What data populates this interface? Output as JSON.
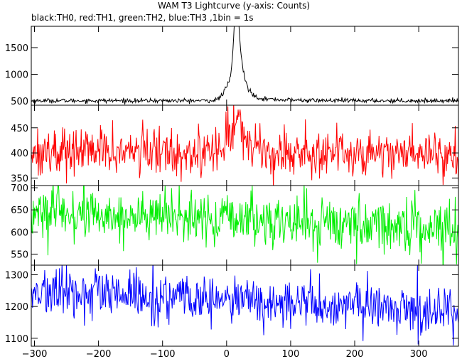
{
  "chart_data": {
    "type": "line",
    "title": "WAM T3 Lightcurve (y-axis: Counts)",
    "subtitle": "black:TH0, red:TH1, green:TH2, blue:TH3 ,1bin = 1s",
    "xlabel": "",
    "ylabel": "",
    "grid": false,
    "xlim": [
      -305,
      362
    ],
    "x_ticks": [
      -300,
      -200,
      -100,
      0,
      100,
      200,
      300
    ],
    "x_tick_labels": [
      "−300",
      "−200",
      "−100",
      "0",
      "100",
      "200",
      "300"
    ],
    "panels": [
      {
        "name": "TH0",
        "color": "#000000",
        "ylim": [
          420,
          1900
        ],
        "y_ticks": [
          500,
          1000,
          1500
        ],
        "baseline": 505,
        "noise": 20,
        "peaks": [
          {
            "x": 8,
            "height": 350,
            "width": 10
          },
          {
            "x": 15,
            "height": 1050,
            "width": 4
          },
          {
            "x": 20,
            "height": 400,
            "width": 6
          },
          {
            "x": 28,
            "height": 150,
            "width": 10
          }
        ],
        "tail": {
          "x0": 10,
          "height": 120,
          "tau": 40
        }
      },
      {
        "name": "TH1",
        "color": "#ff0000",
        "ylim": [
          335,
          495
        ],
        "y_ticks": [
          350,
          400,
          450
        ],
        "baseline": 402,
        "noise": 24,
        "drift": -0.005,
        "peaks": [
          {
            "x": 14,
            "height": 55,
            "width": 10
          },
          {
            "x": 28,
            "height": 15,
            "width": 15
          }
        ]
      },
      {
        "name": "TH2",
        "color": "#00ee00",
        "ylim": [
          525,
          705
        ],
        "y_ticks": [
          550,
          600,
          650,
          700
        ],
        "baseline": 628,
        "noise": 30,
        "drift": -0.05,
        "peaks": []
      },
      {
        "name": "TH3",
        "color": "#0000ff",
        "ylim": [
          1075,
          1330
        ],
        "y_ticks": [
          1100,
          1200,
          1300
        ],
        "baseline": 1218,
        "noise": 38,
        "drift": -0.09,
        "peaks": []
      }
    ]
  }
}
